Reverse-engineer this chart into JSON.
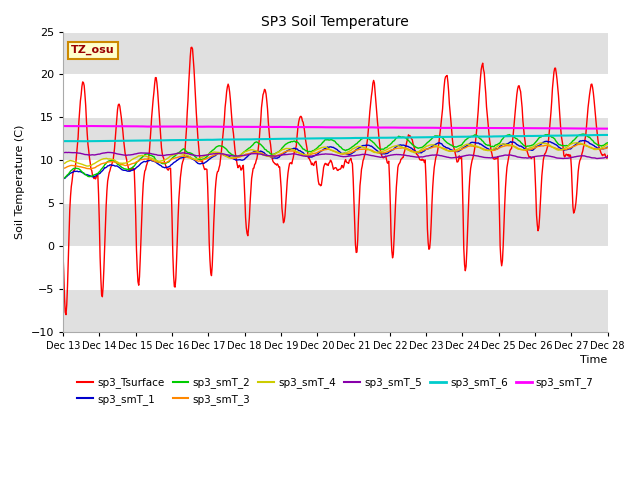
{
  "title": "SP3 Soil Temperature",
  "ylabel": "Soil Temperature (C)",
  "xlabel": "Time",
  "ylim": [
    -10,
    25
  ],
  "yticks": [
    -10,
    -5,
    0,
    5,
    10,
    15,
    20,
    25
  ],
  "xtick_labels": [
    "Dec 13",
    "Dec 14",
    "Dec 15",
    "Dec 16",
    "Dec 17",
    "Dec 18",
    "Dec 19",
    "Dec 20",
    "Dec 21",
    "Dec 22",
    "Dec 23",
    "Dec 24",
    "Dec 25",
    "Dec 26",
    "Dec 27",
    "Dec 28"
  ],
  "annotation_text": "TZ_osu",
  "annotation_bg": "#ffffcc",
  "annotation_border": "#cc8800",
  "bg_color": "#ffffff",
  "band_color": "#e0e0e0",
  "series": {
    "sp3_Tsurface": {
      "color": "#ff0000",
      "lw": 1.0
    },
    "sp3_smT_1": {
      "color": "#0000cc",
      "lw": 1.0
    },
    "sp3_smT_2": {
      "color": "#00cc00",
      "lw": 1.0
    },
    "sp3_smT_3": {
      "color": "#ff8800",
      "lw": 1.0
    },
    "sp3_smT_4": {
      "color": "#cccc00",
      "lw": 1.0
    },
    "sp3_smT_5": {
      "color": "#8800aa",
      "lw": 1.0
    },
    "sp3_smT_6": {
      "color": "#00cccc",
      "lw": 1.5
    },
    "sp3_smT_7": {
      "color": "#ff00ff",
      "lw": 1.5
    }
  },
  "legend_order": [
    "sp3_Tsurface",
    "sp3_smT_1",
    "sp3_smT_2",
    "sp3_smT_3",
    "sp3_smT_4",
    "sp3_smT_5",
    "sp3_smT_6",
    "sp3_smT_7"
  ]
}
